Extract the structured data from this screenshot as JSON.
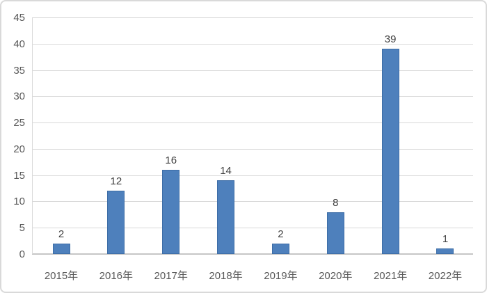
{
  "chart_data": {
    "type": "bar",
    "title": "",
    "xlabel": "",
    "ylabel": "",
    "categories": [
      "2015年",
      "2016年",
      "2017年",
      "2018年",
      "2019年",
      "2020年",
      "2021年",
      "2022年"
    ],
    "values": [
      2,
      12,
      16,
      14,
      2,
      8,
      39,
      1
    ],
    "data_labels": [
      "2",
      "12",
      "16",
      "14",
      "2",
      "8",
      "39",
      "1"
    ],
    "ylim": [
      0,
      45
    ],
    "ytick_step": 5,
    "yticks": [
      "0",
      "5",
      "10",
      "15",
      "20",
      "25",
      "30",
      "35",
      "40",
      "45"
    ],
    "grid": true,
    "legend_position": "none",
    "show_data_labels": true
  },
  "colors": {
    "bar_fill": "#4E80BC",
    "bar_border": "#3D6DA6",
    "gridline": "#D9D9D9",
    "axis_line": "#C6C6C6",
    "y_axis_line": "#D9D9D9",
    "tick_label": "#595959",
    "data_label": "#404040",
    "chart_border": "#D9D9D9",
    "background": "#FFFFFF"
  }
}
